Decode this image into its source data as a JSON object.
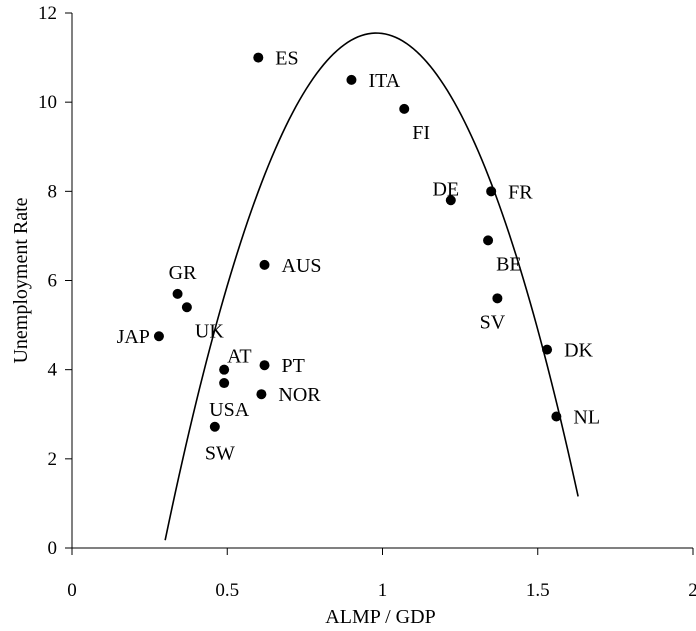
{
  "chart_data": {
    "type": "scatter",
    "xlabel": "ALMP / GDP",
    "ylabel": "Unemployment Rate",
    "xlim": [
      0,
      2
    ],
    "ylim": [
      0,
      12
    ],
    "xticks": [
      "0",
      "0.5",
      "1",
      "1.5",
      "2"
    ],
    "xtick_values": [
      0,
      0.5,
      1,
      1.5,
      2
    ],
    "yticks": [
      "0",
      "2",
      "4",
      "6",
      "8",
      "10",
      "12"
    ],
    "ytick_values": [
      0,
      2,
      4,
      6,
      8,
      10,
      12
    ],
    "grid": false,
    "points": [
      {
        "label": "ES",
        "x": 0.6,
        "y": 11.0,
        "label_pos": "right"
      },
      {
        "label": "ITA",
        "x": 0.9,
        "y": 10.5,
        "label_pos": "right"
      },
      {
        "label": "FI",
        "x": 1.07,
        "y": 9.85,
        "label_pos": "below-right"
      },
      {
        "label": "DE",
        "x": 1.22,
        "y": 7.8,
        "label_pos": "above-left"
      },
      {
        "label": "FR",
        "x": 1.35,
        "y": 8.0,
        "label_pos": "right"
      },
      {
        "label": "BE",
        "x": 1.34,
        "y": 6.9,
        "label_pos": "below-right"
      },
      {
        "label": "SV",
        "x": 1.37,
        "y": 5.6,
        "label_pos": "below-left"
      },
      {
        "label": "DK",
        "x": 1.53,
        "y": 4.45,
        "label_pos": "right"
      },
      {
        "label": "NL",
        "x": 1.56,
        "y": 2.95,
        "label_pos": "right"
      },
      {
        "label": "AUS",
        "x": 0.62,
        "y": 6.35,
        "label_pos": "right"
      },
      {
        "label": "GR",
        "x": 0.34,
        "y": 5.7,
        "label_pos": "above"
      },
      {
        "label": "UK",
        "x": 0.37,
        "y": 5.4,
        "label_pos": "below-right"
      },
      {
        "label": "JAP",
        "x": 0.28,
        "y": 4.75,
        "label_pos": "left"
      },
      {
        "label": "AT",
        "x": 0.49,
        "y": 4.0,
        "label_pos": "above-right"
      },
      {
        "label": "PT",
        "x": 0.62,
        "y": 4.1,
        "label_pos": "right"
      },
      {
        "label": "USA",
        "x": 0.49,
        "y": 3.7,
        "label_pos": "below"
      },
      {
        "label": "NOR",
        "x": 0.61,
        "y": 3.45,
        "label_pos": "right"
      },
      {
        "label": "SW",
        "x": 0.46,
        "y": 2.72,
        "label_pos": "below"
      }
    ],
    "fit_curve": {
      "type": "quadratic",
      "peak_x": 0.98,
      "peak_y": 11.55,
      "curvature": 24.6,
      "x_range": [
        0.3,
        1.63
      ]
    }
  }
}
